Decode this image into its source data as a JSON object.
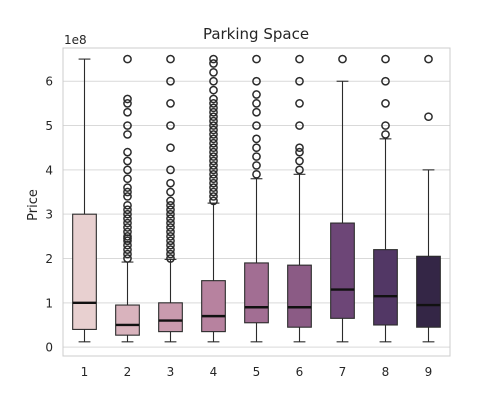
{
  "chart_data": {
    "type": "boxplot",
    "title": "Parking Space",
    "xlabel": "",
    "ylabel": "Price",
    "y_scale_label": "1e8",
    "ylim": [
      -0.2,
      6.75
    ],
    "yticks": [
      0,
      1,
      2,
      3,
      4,
      5,
      6
    ],
    "grid": true,
    "categories": [
      "1",
      "2",
      "3",
      "4",
      "5",
      "6",
      "7",
      "8",
      "9"
    ],
    "colors": [
      "#e8d0d0",
      "#d9b3bd",
      "#c99bae",
      "#b7829f",
      "#a26e93",
      "#8b5b85",
      "#6d4677",
      "#523765",
      "#342646"
    ],
    "boxes": [
      {
        "q1": 0.4,
        "median": 1.0,
        "q3": 3.0,
        "whisker_low": 0.12,
        "whisker_high": 6.5,
        "outliers": []
      },
      {
        "q1": 0.27,
        "median": 0.5,
        "q3": 0.95,
        "whisker_low": 0.12,
        "whisker_high": 1.92,
        "outliers": [
          2.0,
          2.1,
          2.2,
          2.3,
          2.4,
          2.45,
          2.5,
          2.6,
          2.7,
          2.8,
          2.9,
          3.0,
          3.1,
          3.2,
          3.4,
          3.5,
          3.6,
          3.8,
          4.0,
          4.2,
          4.4,
          4.8,
          5.0,
          5.3,
          5.5,
          5.6,
          6.5
        ]
      },
      {
        "q1": 0.35,
        "median": 0.6,
        "q3": 1.0,
        "whisker_low": 0.12,
        "whisker_high": 1.98,
        "outliers": [
          2.0,
          2.1,
          2.2,
          2.3,
          2.4,
          2.5,
          2.6,
          2.7,
          2.8,
          2.9,
          3.0,
          3.1,
          3.2,
          3.3,
          3.5,
          3.7,
          4.0,
          4.5,
          5.0,
          5.5,
          6.0,
          6.5
        ]
      },
      {
        "q1": 0.35,
        "median": 0.7,
        "q3": 1.5,
        "whisker_low": 0.12,
        "whisker_high": 3.25,
        "outliers": [
          3.3,
          3.4,
          3.5,
          3.6,
          3.7,
          3.8,
          3.9,
          4.0,
          4.1,
          4.2,
          4.3,
          4.4,
          4.5,
          4.6,
          4.7,
          4.8,
          4.9,
          5.0,
          5.1,
          5.2,
          5.3,
          5.4,
          5.5,
          5.6,
          5.8,
          6.0,
          6.2,
          6.4,
          6.5
        ]
      },
      {
        "q1": 0.55,
        "median": 0.9,
        "q3": 1.9,
        "whisker_low": 0.12,
        "whisker_high": 3.8,
        "outliers": [
          3.9,
          4.1,
          4.3,
          4.5,
          4.7,
          5.0,
          5.3,
          5.5,
          5.7,
          6.0,
          6.5
        ]
      },
      {
        "q1": 0.45,
        "median": 0.9,
        "q3": 1.85,
        "whisker_low": 0.12,
        "whisker_high": 3.9,
        "outliers": [
          4.0,
          4.2,
          4.4,
          4.5,
          5.0,
          5.5,
          6.0,
          6.5
        ]
      },
      {
        "q1": 0.65,
        "median": 1.3,
        "q3": 2.8,
        "whisker_low": 0.12,
        "whisker_high": 6.0,
        "outliers": [
          6.5
        ]
      },
      {
        "q1": 0.5,
        "median": 1.15,
        "q3": 2.2,
        "whisker_low": 0.12,
        "whisker_high": 4.7,
        "outliers": [
          4.8,
          5.0,
          5.5,
          6.0,
          6.5
        ]
      },
      {
        "q1": 0.45,
        "median": 0.95,
        "q3": 2.05,
        "whisker_low": 0.12,
        "whisker_high": 4.0,
        "outliers": [
          5.2,
          6.5
        ]
      }
    ]
  }
}
